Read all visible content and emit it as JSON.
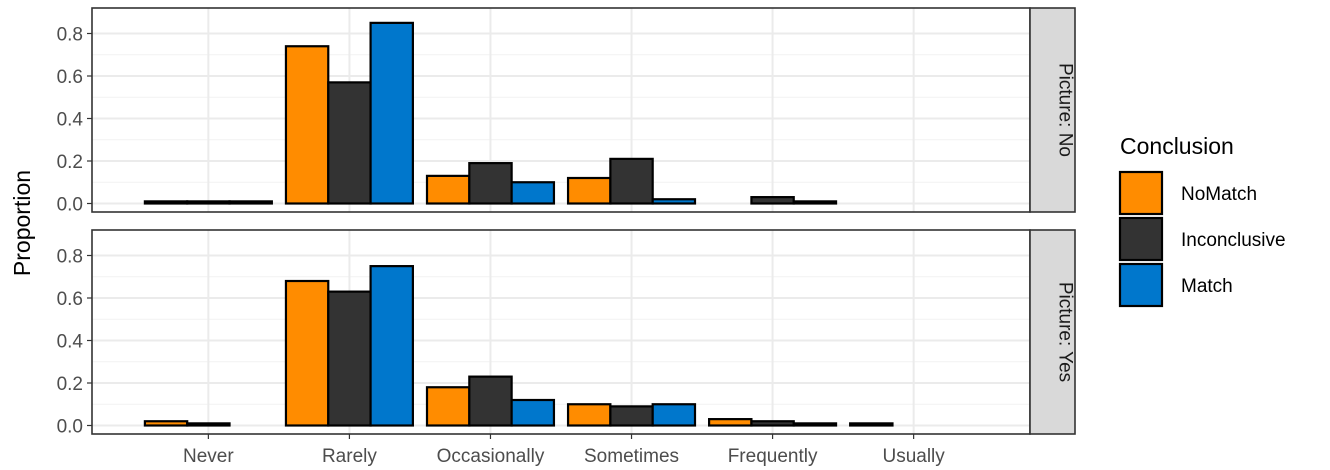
{
  "chart_data": {
    "type": "bar",
    "ylabel": "Proportion",
    "xlabel": "",
    "categories": [
      "Never",
      "Rarely",
      "Occasionally",
      "Sometimes",
      "Frequently",
      "Usually"
    ],
    "yticks": [
      "0.0",
      "0.2",
      "0.4",
      "0.6",
      "0.8"
    ],
    "ylim": [
      0,
      0.88
    ],
    "grid": true,
    "legend": {
      "title": "Conclusion",
      "position": "right",
      "entries": [
        {
          "name": "NoMatch",
          "color": "#FF8C00"
        },
        {
          "name": "Inconclusive",
          "color": "#333333"
        },
        {
          "name": "Match",
          "color": "#0077CC"
        }
      ]
    },
    "panels": [
      {
        "strip": "Picture: No",
        "series": [
          {
            "name": "NoMatch",
            "values": [
              0.01,
              0.74,
              0.13,
              0.12,
              0.0,
              0.0
            ]
          },
          {
            "name": "Inconclusive",
            "values": [
              0.01,
              0.57,
              0.19,
              0.21,
              0.03,
              0.0
            ]
          },
          {
            "name": "Match",
            "values": [
              0.01,
              0.85,
              0.1,
              0.02,
              0.01,
              0.0
            ]
          }
        ]
      },
      {
        "strip": "Picture: Yes",
        "series": [
          {
            "name": "NoMatch",
            "values": [
              0.02,
              0.68,
              0.18,
              0.1,
              0.03,
              0.01
            ]
          },
          {
            "name": "Inconclusive",
            "values": [
              0.01,
              0.63,
              0.23,
              0.09,
              0.02,
              0.0
            ]
          },
          {
            "name": "Match",
            "values": [
              0.0,
              0.75,
              0.12,
              0.1,
              0.01,
              0.0
            ]
          }
        ]
      }
    ]
  }
}
